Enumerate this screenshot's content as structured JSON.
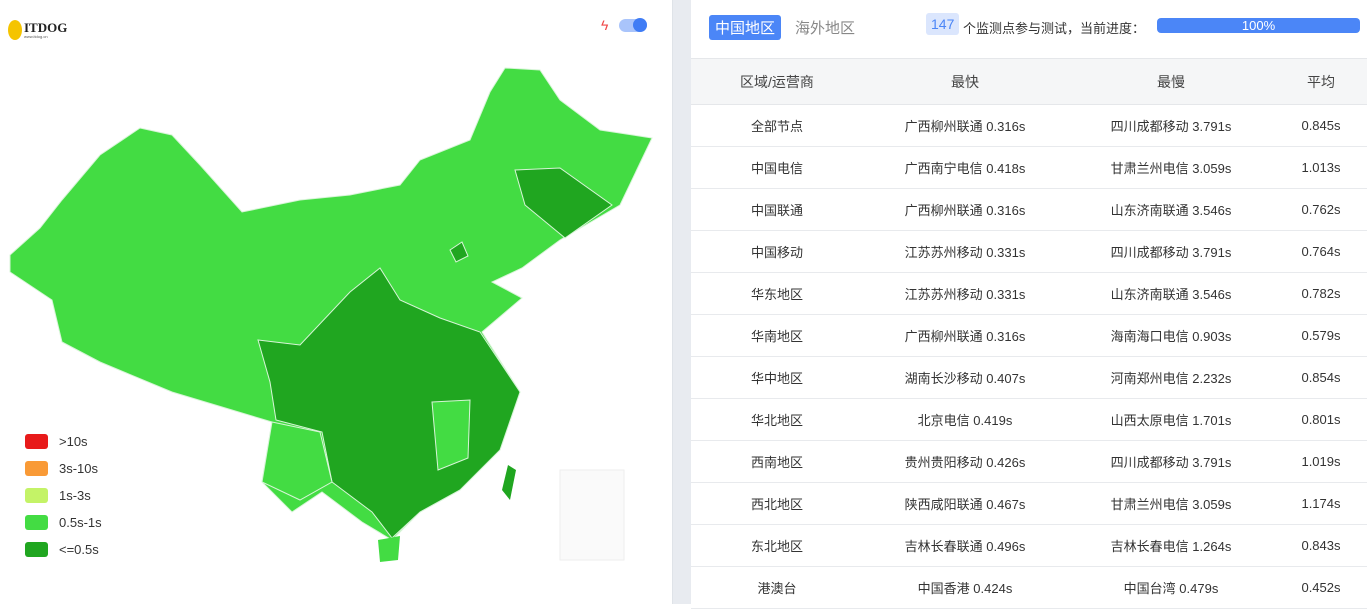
{
  "header": {
    "logo_text": "ITDOG",
    "logo_sub": "www.itdog.cn",
    "toggle_on": true
  },
  "legend": [
    {
      "label": ">10s",
      "color": "#e81a1a"
    },
    {
      "label": "3s-10s",
      "color": "#f99a36"
    },
    {
      "label": "1s-3s",
      "color": "#c4f367"
    },
    {
      "label": "0.5s-1s",
      "color": "#43dc43"
    },
    {
      "label": "<=0.5s",
      "color": "#20a620"
    }
  ],
  "tabs": [
    {
      "label": "中国地区",
      "active": true
    },
    {
      "label": "海外地区",
      "active": false
    }
  ],
  "status": {
    "count": "147",
    "text": "个监测点参与测试，当前进度：",
    "progress": "100%",
    "progress_value": 100
  },
  "table": {
    "headers": [
      "区域/运营商",
      "最快",
      "最慢",
      "平均"
    ],
    "rows": [
      [
        "全部节点",
        "广西柳州联通 0.316s",
        "四川成都移动 3.791s",
        "0.845s"
      ],
      [
        "中国电信",
        "广西南宁电信 0.418s",
        "甘肃兰州电信 3.059s",
        "1.013s"
      ],
      [
        "中国联通",
        "广西柳州联通 0.316s",
        "山东济南联通 3.546s",
        "0.762s"
      ],
      [
        "中国移动",
        "江苏苏州移动 0.331s",
        "四川成都移动 3.791s",
        "0.764s"
      ],
      [
        "华东地区",
        "江苏苏州移动 0.331s",
        "山东济南联通 3.546s",
        "0.782s"
      ],
      [
        "华南地区",
        "广西柳州联通 0.316s",
        "海南海口电信 0.903s",
        "0.579s"
      ],
      [
        "华中地区",
        "湖南长沙移动 0.407s",
        "河南郑州电信 2.232s",
        "0.854s"
      ],
      [
        "华北地区",
        "北京电信 0.419s",
        "山西太原电信 1.701s",
        "0.801s"
      ],
      [
        "西南地区",
        "贵州贵阳移动 0.426s",
        "四川成都移动 3.791s",
        "1.019s"
      ],
      [
        "西北地区",
        "陕西咸阳联通 0.467s",
        "甘肃兰州电信 3.059s",
        "1.174s"
      ],
      [
        "东北地区",
        "吉林长春联通 0.496s",
        "吉林长春电信 1.264s",
        "0.843s"
      ],
      [
        "港澳台",
        "中国香港 0.424s",
        "中国台湾 0.479s",
        "0.452s"
      ]
    ]
  }
}
